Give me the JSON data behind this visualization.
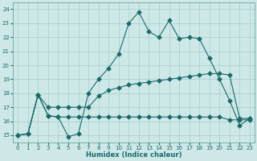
{
  "title": "",
  "xlabel": "Humidex (Indice chaleur)",
  "bg_color": "#cde8e6",
  "grid_color": "#a8cece",
  "line_color": "#1a6b6b",
  "xlim": [
    -0.5,
    23.5
  ],
  "ylim": [
    14.5,
    24.5
  ],
  "yticks": [
    15,
    16,
    17,
    18,
    19,
    20,
    21,
    22,
    23,
    24
  ],
  "xticks": [
    0,
    1,
    2,
    3,
    4,
    5,
    6,
    7,
    8,
    9,
    10,
    11,
    12,
    13,
    14,
    15,
    16,
    17,
    18,
    19,
    20,
    21,
    22,
    23
  ],
  "series1_x": [
    0,
    1,
    2,
    3,
    4,
    5,
    6,
    7,
    8,
    9,
    10,
    11,
    12,
    13,
    14,
    15,
    16,
    17,
    18,
    19,
    20,
    21,
    22,
    23
  ],
  "series1_y": [
    15.0,
    15.1,
    17.9,
    16.4,
    16.3,
    14.9,
    15.1,
    18.0,
    19.0,
    19.8,
    20.8,
    23.0,
    23.8,
    22.4,
    22.0,
    23.2,
    21.9,
    22.0,
    21.9,
    20.5,
    19.0,
    17.5,
    15.7,
    16.2
  ],
  "series2_x": [
    0,
    1,
    2,
    3,
    4,
    5,
    6,
    7,
    8,
    9,
    10,
    11,
    12,
    13,
    14,
    15,
    16,
    17,
    18,
    19,
    20,
    21,
    22,
    23
  ],
  "series2_y": [
    15.0,
    15.1,
    17.9,
    17.0,
    17.0,
    17.0,
    17.0,
    17.0,
    17.8,
    18.2,
    18.4,
    18.6,
    18.7,
    18.8,
    18.9,
    19.0,
    19.1,
    19.2,
    19.3,
    19.4,
    19.4,
    19.3,
    16.2,
    16.2
  ],
  "series3_x": [
    0,
    1,
    2,
    3,
    4,
    5,
    6,
    7,
    8,
    9,
    10,
    11,
    12,
    13,
    14,
    15,
    16,
    17,
    18,
    19,
    20,
    21,
    22,
    23
  ],
  "series3_y": [
    15.0,
    15.1,
    17.9,
    16.4,
    16.3,
    16.3,
    16.3,
    16.3,
    16.3,
    16.3,
    16.3,
    16.3,
    16.3,
    16.3,
    16.3,
    16.3,
    16.3,
    16.3,
    16.3,
    16.3,
    16.3,
    16.1,
    16.1,
    16.1
  ],
  "marker_size": 2.5,
  "line_width": 0.8
}
